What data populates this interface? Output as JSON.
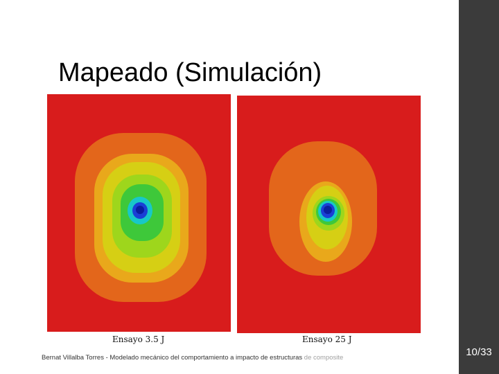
{
  "slide": {
    "title": "Mapeado (Simulación)",
    "page_number": "10/33",
    "footer_main": "Bernat Villalba Torres - Modelado mecánico del comportamiento a impacto de estructuras",
    "footer_faded": "de composite"
  },
  "images": [
    {
      "caption": "Ensayo 3.5 J"
    },
    {
      "caption": "Ensayo 25 J"
    }
  ],
  "colors": {
    "sidebar": "#3b3b3b",
    "contour_red": "#d81c1c",
    "contour_orange": "#e3661b",
    "contour_amber": "#e9a81b",
    "contour_yellow": "#d6cf14",
    "contour_lime": "#9ed61c",
    "contour_green": "#3ec83a",
    "contour_cyan": "#18c8c8",
    "contour_blue": "#1a3fd6",
    "contour_darkblue": "#0a1ea0"
  }
}
